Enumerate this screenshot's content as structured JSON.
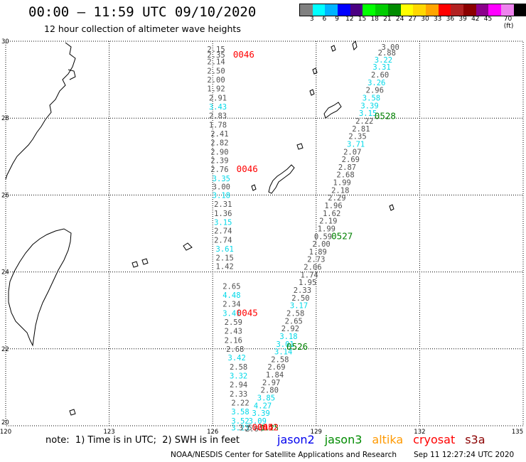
{
  "header": {
    "title": "00:00 – 11:59 UTC 09/10/2020",
    "subtitle": "12 hour collection of altimeter wave heights"
  },
  "colorbar": {
    "colors": [
      "#808080",
      "#00ffff",
      "#00b4ff",
      "#0000ff",
      "#4b0082",
      "#00ff00",
      "#00cd00",
      "#008b00",
      "#ffff00",
      "#ffd700",
      "#ffa500",
      "#ff0000",
      "#b22222",
      "#8b0000",
      "#8b008b",
      "#ff00ff",
      "#ee82ee",
      "#000000"
    ],
    "labels": [
      "3",
      "6",
      "9",
      "12",
      "15",
      "18",
      "21",
      "24",
      "27",
      "30",
      "33",
      "36",
      "39",
      "42",
      "45",
      "70 (ft)"
    ]
  },
  "axes": {
    "lon_labels": [
      "120",
      "123",
      "126",
      "129",
      "132",
      "135"
    ],
    "lat_labels": [
      "30",
      "28",
      "26",
      "24",
      "22",
      "20"
    ]
  },
  "value_colors": {
    "gray": "#505050",
    "cyan": "#00d8e8",
    "red": "#ff0000",
    "green": "#008000"
  },
  "observations": [
    {
      "lon": 126.1,
      "lat": 29.8,
      "v": "2.15",
      "c": "gray"
    },
    {
      "lon": 126.1,
      "lat": 29.65,
      "v": "2.35",
      "c": "gray"
    },
    {
      "lon": 126.1,
      "lat": 29.47,
      "v": "2.14",
      "c": "gray"
    },
    {
      "lon": 126.1,
      "lat": 29.23,
      "v": "2.50",
      "c": "gray"
    },
    {
      "lon": 126.1,
      "lat": 29.0,
      "v": "2.00",
      "c": "gray"
    },
    {
      "lon": 126.1,
      "lat": 28.77,
      "v": "1.92",
      "c": "gray"
    },
    {
      "lon": 126.15,
      "lat": 28.53,
      "v": "2.91",
      "c": "gray"
    },
    {
      "lon": 126.15,
      "lat": 28.3,
      "v": "3.43",
      "c": "cyan"
    },
    {
      "lon": 126.15,
      "lat": 28.07,
      "v": "2.83",
      "c": "gray"
    },
    {
      "lon": 126.15,
      "lat": 27.83,
      "v": "1.78",
      "c": "gray"
    },
    {
      "lon": 126.2,
      "lat": 27.6,
      "v": "2.41",
      "c": "gray"
    },
    {
      "lon": 126.2,
      "lat": 27.37,
      "v": "2.82",
      "c": "gray"
    },
    {
      "lon": 126.2,
      "lat": 27.13,
      "v": "2.90",
      "c": "gray"
    },
    {
      "lon": 126.2,
      "lat": 26.9,
      "v": "2.39",
      "c": "gray"
    },
    {
      "lon": 126.2,
      "lat": 26.67,
      "v": "2.76",
      "c": "gray"
    },
    {
      "lon": 126.25,
      "lat": 26.43,
      "v": "3.35",
      "c": "cyan"
    },
    {
      "lon": 126.25,
      "lat": 26.22,
      "v": "3.00",
      "c": "gray"
    },
    {
      "lon": 126.25,
      "lat": 26.0,
      "v": "3.18",
      "c": "cyan"
    },
    {
      "lon": 126.3,
      "lat": 25.77,
      "v": "2.31",
      "c": "gray"
    },
    {
      "lon": 126.3,
      "lat": 25.53,
      "v": "1.36",
      "c": "gray"
    },
    {
      "lon": 126.3,
      "lat": 25.3,
      "v": "3.15",
      "c": "cyan"
    },
    {
      "lon": 126.3,
      "lat": 25.07,
      "v": "2.74",
      "c": "gray"
    },
    {
      "lon": 126.3,
      "lat": 24.83,
      "v": "2.74",
      "c": "gray"
    },
    {
      "lon": 126.35,
      "lat": 24.6,
      "v": "3.61",
      "c": "cyan"
    },
    {
      "lon": 126.35,
      "lat": 24.37,
      "v": "2.15",
      "c": "gray"
    },
    {
      "lon": 126.35,
      "lat": 24.15,
      "v": "1.42",
      "c": "gray"
    },
    {
      "lon": 126.55,
      "lat": 23.63,
      "v": "2.65",
      "c": "gray"
    },
    {
      "lon": 126.55,
      "lat": 23.4,
      "v": "4.48",
      "c": "cyan"
    },
    {
      "lon": 126.55,
      "lat": 23.17,
      "v": "2.34",
      "c": "gray"
    },
    {
      "lon": 126.55,
      "lat": 22.93,
      "v": "3.41",
      "c": "cyan"
    },
    {
      "lon": 126.6,
      "lat": 22.7,
      "v": "2.59",
      "c": "gray"
    },
    {
      "lon": 126.6,
      "lat": 22.47,
      "v": "2.43",
      "c": "gray"
    },
    {
      "lon": 126.6,
      "lat": 22.23,
      "v": "2.16",
      "c": "gray"
    },
    {
      "lon": 126.65,
      "lat": 22.0,
      "v": "2.68",
      "c": "gray"
    },
    {
      "lon": 126.7,
      "lat": 21.77,
      "v": "3.42",
      "c": "cyan"
    },
    {
      "lon": 126.75,
      "lat": 21.53,
      "v": "2.58",
      "c": "gray"
    },
    {
      "lon": 126.75,
      "lat": 21.3,
      "v": "3.32",
      "c": "cyan"
    },
    {
      "lon": 126.75,
      "lat": 21.07,
      "v": "2.94",
      "c": "gray"
    },
    {
      "lon": 126.75,
      "lat": 20.83,
      "v": "2.33",
      "c": "gray"
    },
    {
      "lon": 126.8,
      "lat": 20.6,
      "v": "2.22",
      "c": "gray"
    },
    {
      "lon": 126.8,
      "lat": 20.37,
      "v": "3.58",
      "c": "cyan"
    },
    {
      "lon": 126.8,
      "lat": 20.13,
      "v": "3.52",
      "c": "cyan"
    },
    {
      "lon": 126.8,
      "lat": 19.95,
      "v": "3.23",
      "c": "cyan"
    },
    {
      "lon": 126.95,
      "lat": 19.95,
      "v": "3.5",
      "c": "gray"
    },
    {
      "lon": 131.15,
      "lat": 29.85,
      "v": "3.00",
      "c": "gray"
    },
    {
      "lon": 131.05,
      "lat": 29.7,
      "v": "2.88",
      "c": "gray"
    },
    {
      "lon": 130.95,
      "lat": 29.52,
      "v": "3.22",
      "c": "cyan"
    },
    {
      "lon": 130.9,
      "lat": 29.33,
      "v": "3.31",
      "c": "cyan"
    },
    {
      "lon": 130.85,
      "lat": 29.13,
      "v": "2.60",
      "c": "gray"
    },
    {
      "lon": 130.75,
      "lat": 28.93,
      "v": "3.26",
      "c": "cyan"
    },
    {
      "lon": 130.7,
      "lat": 28.73,
      "v": "2.96",
      "c": "gray"
    },
    {
      "lon": 130.6,
      "lat": 28.53,
      "v": "3.58",
      "c": "cyan"
    },
    {
      "lon": 130.55,
      "lat": 28.33,
      "v": "3.39",
      "c": "cyan"
    },
    {
      "lon": 130.5,
      "lat": 28.13,
      "v": "3.15",
      "c": "cyan"
    },
    {
      "lon": 130.4,
      "lat": 27.93,
      "v": "2.22",
      "c": "gray"
    },
    {
      "lon": 130.3,
      "lat": 27.73,
      "v": "2.81",
      "c": "gray"
    },
    {
      "lon": 130.2,
      "lat": 27.53,
      "v": "2.35",
      "c": "gray"
    },
    {
      "lon": 130.15,
      "lat": 27.33,
      "v": "3.71",
      "c": "cyan"
    },
    {
      "lon": 130.05,
      "lat": 27.13,
      "v": "2.07",
      "c": "gray"
    },
    {
      "lon": 130.0,
      "lat": 26.93,
      "v": "2.69",
      "c": "gray"
    },
    {
      "lon": 129.9,
      "lat": 26.73,
      "v": "2.87",
      "c": "gray"
    },
    {
      "lon": 129.85,
      "lat": 26.53,
      "v": "2.68",
      "c": "gray"
    },
    {
      "lon": 129.75,
      "lat": 26.33,
      "v": "1.99",
      "c": "gray"
    },
    {
      "lon": 129.7,
      "lat": 26.13,
      "v": "2.18",
      "c": "gray"
    },
    {
      "lon": 129.6,
      "lat": 25.93,
      "v": "2.29",
      "c": "gray"
    },
    {
      "lon": 129.5,
      "lat": 25.73,
      "v": "1.96",
      "c": "gray"
    },
    {
      "lon": 129.45,
      "lat": 25.53,
      "v": "1.62",
      "c": "gray"
    },
    {
      "lon": 129.35,
      "lat": 25.33,
      "v": "2.19",
      "c": "gray"
    },
    {
      "lon": 129.3,
      "lat": 25.13,
      "v": "1.99",
      "c": "gray"
    },
    {
      "lon": 129.2,
      "lat": 24.93,
      "v": "0.59",
      "c": "gray"
    },
    {
      "lon": 129.15,
      "lat": 24.73,
      "v": "2.00",
      "c": "gray"
    },
    {
      "lon": 129.05,
      "lat": 24.53,
      "v": "1.89",
      "c": "gray"
    },
    {
      "lon": 129.0,
      "lat": 24.33,
      "v": "2.73",
      "c": "gray"
    },
    {
      "lon": 128.9,
      "lat": 24.13,
      "v": "2.06",
      "c": "gray"
    },
    {
      "lon": 128.8,
      "lat": 23.93,
      "v": "1.74",
      "c": "gray"
    },
    {
      "lon": 128.75,
      "lat": 23.73,
      "v": "1.95",
      "c": "gray"
    },
    {
      "lon": 128.6,
      "lat": 23.53,
      "v": "2.33",
      "c": "gray"
    },
    {
      "lon": 128.55,
      "lat": 23.33,
      "v": "2.50",
      "c": "gray"
    },
    {
      "lon": 128.5,
      "lat": 23.13,
      "v": "3.17",
      "c": "cyan"
    },
    {
      "lon": 128.4,
      "lat": 22.93,
      "v": "2.58",
      "c": "gray"
    },
    {
      "lon": 128.35,
      "lat": 22.73,
      "v": "2.65",
      "c": "gray"
    },
    {
      "lon": 128.25,
      "lat": 22.53,
      "v": "2.92",
      "c": "gray"
    },
    {
      "lon": 128.2,
      "lat": 22.33,
      "v": "3.18",
      "c": "cyan"
    },
    {
      "lon": 128.1,
      "lat": 22.13,
      "v": "3.01",
      "c": "cyan"
    },
    {
      "lon": 128.05,
      "lat": 21.93,
      "v": "3.14",
      "c": "cyan"
    },
    {
      "lon": 127.95,
      "lat": 21.73,
      "v": "2.58",
      "c": "gray"
    },
    {
      "lon": 127.85,
      "lat": 21.53,
      "v": "2.69",
      "c": "gray"
    },
    {
      "lon": 127.8,
      "lat": 21.33,
      "v": "1.84",
      "c": "gray"
    },
    {
      "lon": 127.7,
      "lat": 21.13,
      "v": "2.97",
      "c": "gray"
    },
    {
      "lon": 127.65,
      "lat": 20.93,
      "v": "2.80",
      "c": "gray"
    },
    {
      "lon": 127.55,
      "lat": 20.73,
      "v": "3.85",
      "c": "cyan"
    },
    {
      "lon": 127.45,
      "lat": 20.53,
      "v": "4.27",
      "c": "cyan"
    },
    {
      "lon": 127.4,
      "lat": 20.33,
      "v": "3.39",
      "c": "cyan"
    },
    {
      "lon": 127.3,
      "lat": 20.13,
      "v": "3.09",
      "c": "cyan"
    },
    {
      "lon": 127.2,
      "lat": 19.93,
      "v": "2.64",
      "c": "gray"
    },
    {
      "lon": 127.65,
      "lat": 19.95,
      "v": "1.25",
      "c": "green"
    }
  ],
  "pass_labels": [
    {
      "lon": 126.9,
      "lat": 29.65,
      "v": "0046",
      "c": "red"
    },
    {
      "lon": 127.0,
      "lat": 26.67,
      "v": "0046",
      "c": "red"
    },
    {
      "lon": 127.0,
      "lat": 22.93,
      "v": "0045",
      "c": "red"
    },
    {
      "lon": 127.45,
      "lat": 19.95,
      "v": "0044",
      "c": "red"
    },
    {
      "lon": 127.6,
      "lat": 19.95,
      "v": "0052",
      "c": "red"
    },
    {
      "lon": 131.0,
      "lat": 28.05,
      "v": "0528",
      "c": "green"
    },
    {
      "lon": 129.75,
      "lat": 24.93,
      "v": "0527",
      "c": "green"
    },
    {
      "lon": 128.45,
      "lat": 22.05,
      "v": "0526",
      "c": "green"
    }
  ],
  "note": "note:  1) Time is in UTC;  2) SWH is in feet",
  "legend": [
    {
      "label": "jason2",
      "color": "#0000ee"
    },
    {
      "label": "jason3",
      "color": "#008b00"
    },
    {
      "label": "altika",
      "color": "#ff9900"
    },
    {
      "label": "cryosat",
      "color": "#ff0000"
    },
    {
      "label": "s3a",
      "color": "#8b0000"
    }
  ],
  "credit": "NOAA/NESDIS Center for Satellite Applications and Research",
  "timestamp": "Sep 11 12:27:24 UTC 2020"
}
